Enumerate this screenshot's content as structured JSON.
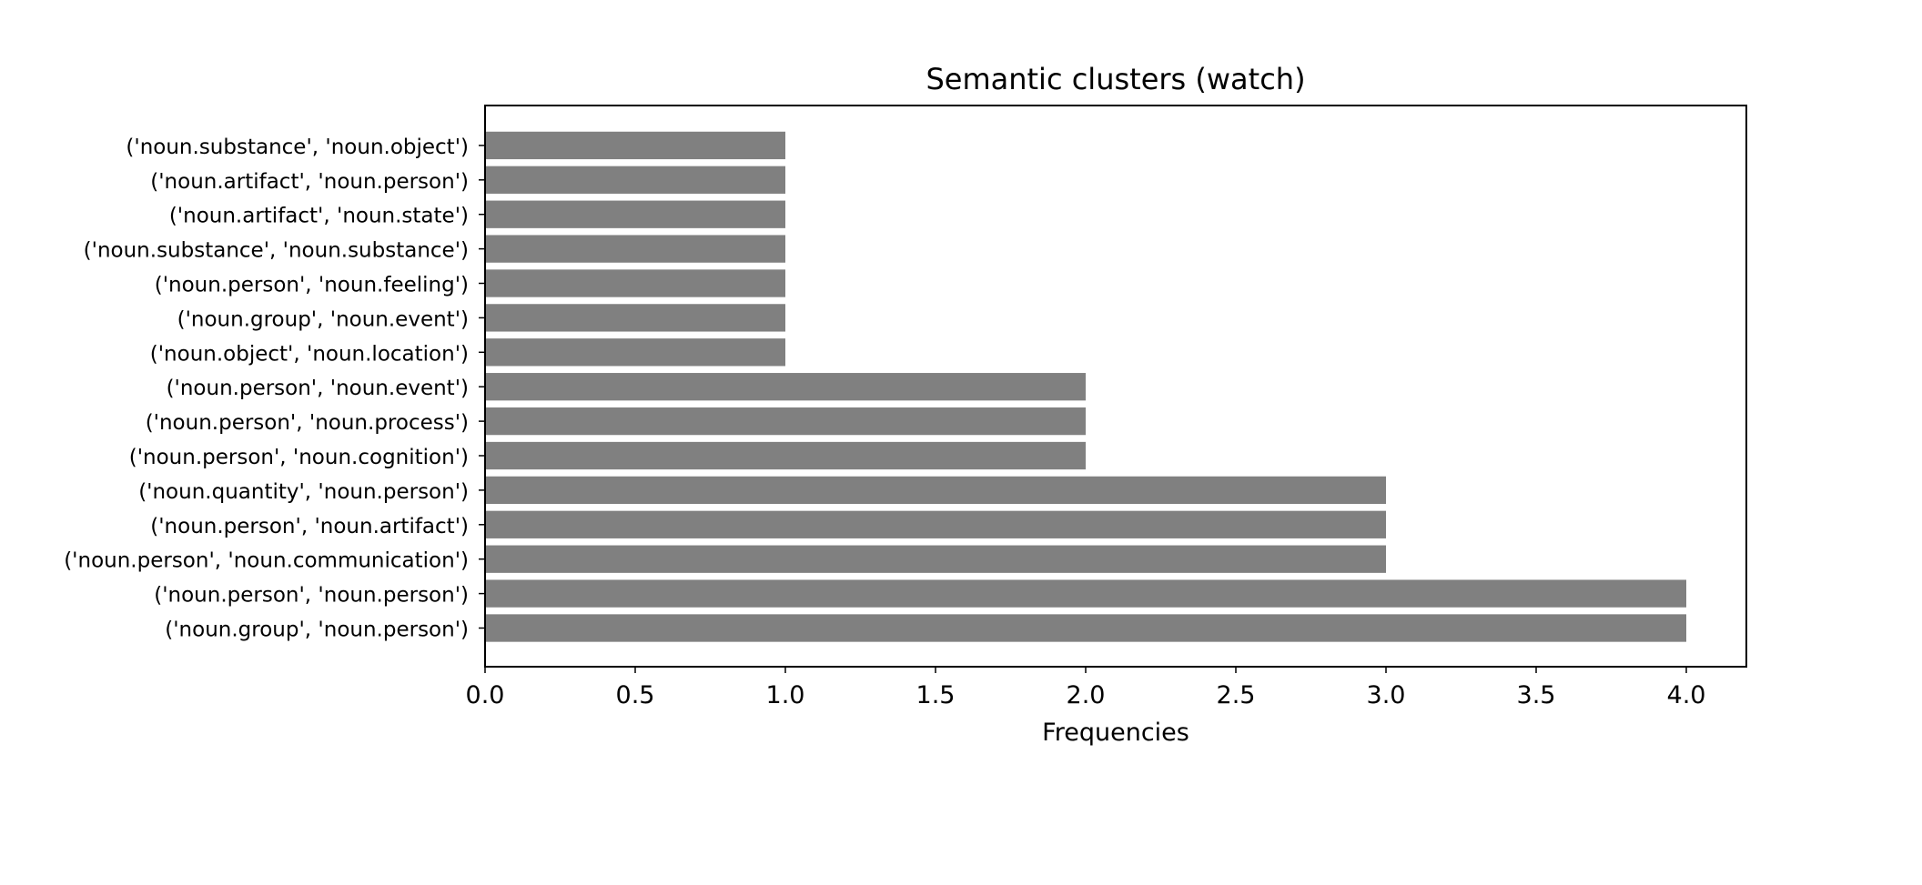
{
  "chart_data": {
    "type": "bar",
    "orientation": "horizontal",
    "title": "Semantic clusters (watch)",
    "xlabel": "Frequencies",
    "ylabel": "",
    "xlim": [
      0,
      4.2
    ],
    "xticks": [
      "0.0",
      "0.5",
      "1.0",
      "1.5",
      "2.0",
      "2.5",
      "3.0",
      "3.5",
      "4.0"
    ],
    "grid": false,
    "legend": "none",
    "bar_color": "#808080",
    "categories": [
      "('noun.group', 'noun.person')",
      "('noun.person', 'noun.person')",
      "('noun.person', 'noun.communication')",
      "('noun.person', 'noun.artifact')",
      "('noun.quantity', 'noun.person')",
      "('noun.person', 'noun.cognition')",
      "('noun.person', 'noun.process')",
      "('noun.person', 'noun.event')",
      "('noun.object', 'noun.location')",
      "('noun.group', 'noun.event')",
      "('noun.person', 'noun.feeling')",
      "('noun.substance', 'noun.substance')",
      "('noun.artifact', 'noun.state')",
      "('noun.artifact', 'noun.person')",
      "('noun.substance', 'noun.object')"
    ],
    "values": [
      4,
      4,
      3,
      3,
      3,
      2,
      2,
      2,
      1,
      1,
      1,
      1,
      1,
      1,
      1
    ]
  }
}
